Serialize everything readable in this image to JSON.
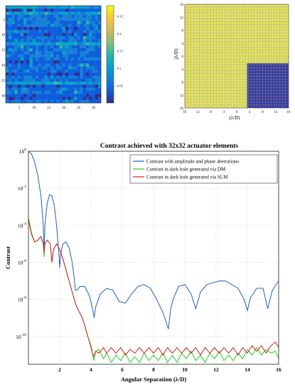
{
  "heatmap": {
    "y_ticks": [
      "5",
      "10",
      "15",
      "20",
      "25",
      "30"
    ],
    "x_ticks": [
      "5",
      "10",
      "15",
      "20",
      "25",
      "30"
    ],
    "colorbar_ticks": [
      "0.25",
      "0.2",
      "0.15",
      "0.1",
      "0.05"
    ],
    "colormap": [
      "#352a87",
      "#0f5cdd",
      "#1481d6",
      "#06a4ca",
      "#2eb7a4",
      "#87bf77",
      "#d1bb59",
      "#fec832",
      "#f9fb0e"
    ]
  },
  "dark_hole": {
    "y_label": "(λ/D)",
    "x_label": "(λ/D)",
    "y_ticks": [
      "16",
      "12",
      "8",
      "4",
      "0",
      "4",
      "8",
      "12",
      "16"
    ],
    "x_ticks": [
      "16",
      "12",
      "8",
      "4",
      "0",
      "4",
      "8",
      "12",
      "16"
    ],
    "field_color": "#e8e35a",
    "hole_color": "#3a3a9a",
    "grid_color": "#8aa0b0"
  },
  "chart_data": {
    "type": "line",
    "title": "Contrast achieved with 32x32 actuator elements",
    "xlabel": "Angular Separation (λ/D)",
    "ylabel": "Contrast",
    "xlim": [
      0,
      16
    ],
    "ylim_log10": [
      -11.5,
      0
    ],
    "x_ticks": [
      "2",
      "4",
      "6",
      "8",
      "10",
      "12",
      "14",
      "16"
    ],
    "y_ticks": [
      {
        "exp": 0,
        "base": "10",
        "sup": "0"
      },
      {
        "exp": -2,
        "base": "10",
        "sup": "-2"
      },
      {
        "exp": -4,
        "base": "10",
        "sup": "-4"
      },
      {
        "exp": -6,
        "base": "10",
        "sup": "-6"
      },
      {
        "exp": -8,
        "base": "10",
        "sup": "-8"
      },
      {
        "exp": -10,
        "base": "10",
        "sup": "-10"
      }
    ],
    "grid": true,
    "legend_position": "top-right",
    "series": [
      {
        "name": "Contrast with amplitude and phase aberrations",
        "color": "#1f5fc0",
        "x": [
          0,
          0.2,
          0.4,
          0.6,
          0.8,
          0.95,
          1.0,
          1.05,
          1.2,
          1.35,
          1.5,
          1.65,
          1.8,
          1.95,
          2.0,
          2.05,
          2.2,
          2.4,
          2.6,
          2.8,
          2.95,
          3.0,
          3.1,
          3.3,
          3.6,
          3.9,
          4.1,
          4.2,
          4.3,
          4.6,
          5.0,
          5.4,
          5.8,
          6.2,
          6.6,
          7.0,
          7.4,
          7.8,
          8.2,
          8.6,
          8.95,
          9.1,
          9.25,
          9.6,
          10.0,
          10.4,
          10.7,
          11.0,
          11.4,
          11.8,
          12.2,
          12.6,
          13.0,
          13.4,
          13.8,
          14.0,
          14.2,
          14.6,
          15.0,
          15.3,
          15.6,
          16.0
        ],
        "y_log10": [
          0,
          -0.15,
          -0.6,
          -1.3,
          -2.4,
          -4.0,
          -5.7,
          -4.0,
          -2.8,
          -2.35,
          -2.4,
          -2.9,
          -4.0,
          -5.6,
          -6.3,
          -5.6,
          -5.0,
          -4.9,
          -5.2,
          -6.0,
          -7.0,
          -7.5,
          -7.5,
          -7.3,
          -7.3,
          -7.8,
          -8.5,
          -9.0,
          -8.4,
          -7.7,
          -7.4,
          -7.5,
          -8.1,
          -8.2,
          -7.7,
          -7.3,
          -7.2,
          -7.4,
          -8.0,
          -8.7,
          -9.6,
          -8.5,
          -8.0,
          -7.3,
          -7.2,
          -7.7,
          -8.5,
          -7.6,
          -7.2,
          -7.1,
          -7.0,
          -7.0,
          -7.2,
          -7.4,
          -8.0,
          -8.6,
          -7.9,
          -7.4,
          -7.4,
          -8.5,
          -7.5,
          -7.0
        ]
      },
      {
        "name": "Contrast in dark hole generated via DM",
        "color": "#22cc22",
        "x": [
          0,
          0.2,
          0.4,
          0.6,
          0.8,
          0.95,
          1.0,
          1.05,
          1.2,
          1.4,
          1.5,
          1.6,
          1.8,
          2.0,
          2.2,
          2.4,
          2.6,
          2.8,
          3.0,
          3.2,
          3.4,
          3.6,
          3.8,
          4.0,
          4.2,
          4.3,
          4.5,
          4.8,
          5.0,
          5.3,
          5.6,
          5.9,
          6.2,
          6.5,
          6.8,
          7.1,
          7.4,
          7.7,
          8.0,
          8.3,
          8.6,
          8.9,
          9.2,
          9.5,
          9.8,
          10.1,
          10.4,
          10.7,
          11.0,
          11.3,
          11.6,
          11.9,
          12.2,
          12.5,
          12.8,
          13.1,
          13.4,
          13.7,
          14.0,
          14.3,
          14.6,
          14.9,
          15.2,
          15.5,
          15.8,
          16.0
        ],
        "y_log10": [
          -3.6,
          -4.4,
          -4.9,
          -4.8,
          -4.6,
          -5.0,
          -5.6,
          -5.0,
          -4.8,
          -5.0,
          -6.0,
          -5.3,
          -5.0,
          -5.3,
          -5.8,
          -6.4,
          -7.0,
          -7.6,
          -8.2,
          -8.6,
          -8.9,
          -9.4,
          -10.0,
          -10.6,
          -11.3,
          -10.8,
          -10.7,
          -11.2,
          -10.9,
          -11.4,
          -11.0,
          -11.3,
          -10.9,
          -11.4,
          -11.1,
          -11.4,
          -10.9,
          -11.3,
          -11.0,
          -11.3,
          -10.9,
          -11.4,
          -11.0,
          -11.4,
          -10.9,
          -11.2,
          -10.8,
          -11.3,
          -11.0,
          -11.4,
          -10.9,
          -11.2,
          -10.8,
          -11.3,
          -11.0,
          -11.3,
          -10.9,
          -11.2,
          -10.7,
          -11.0,
          -10.6,
          -11.0,
          -10.7,
          -10.9,
          -10.8,
          -11.2
        ]
      },
      {
        "name": "Contrast in dark hole generated via SLM",
        "color": "#d62020",
        "x": [
          0,
          0.2,
          0.4,
          0.6,
          0.8,
          0.95,
          1.0,
          1.05,
          1.2,
          1.4,
          1.5,
          1.6,
          1.8,
          2.0,
          2.2,
          2.4,
          2.6,
          2.8,
          3.0,
          3.2,
          3.4,
          3.6,
          3.8,
          4.0,
          4.15,
          4.3,
          4.5,
          4.8,
          5.0,
          5.3,
          5.6,
          5.9,
          6.2,
          6.5,
          6.8,
          7.1,
          7.4,
          7.7,
          8.0,
          8.3,
          8.6,
          8.9,
          9.2,
          9.5,
          9.8,
          10.1,
          10.4,
          10.7,
          11.0,
          11.3,
          11.6,
          11.9,
          12.2,
          12.5,
          12.8,
          13.1,
          13.4,
          13.7,
          14.0,
          14.3,
          14.6,
          14.9,
          15.2,
          15.5,
          15.8,
          16.0
        ],
        "y_log10": [
          -3.7,
          -4.5,
          -4.9,
          -4.8,
          -4.6,
          -5.0,
          -5.5,
          -5.0,
          -4.8,
          -5.0,
          -6.0,
          -5.3,
          -5.0,
          -5.3,
          -5.8,
          -6.4,
          -7.0,
          -7.6,
          -8.2,
          -8.6,
          -8.9,
          -9.4,
          -10.0,
          -10.5,
          -11.1,
          -10.8,
          -10.9,
          -10.6,
          -10.9,
          -10.6,
          -10.9,
          -10.6,
          -11.0,
          -10.7,
          -10.9,
          -10.6,
          -10.9,
          -10.6,
          -10.9,
          -10.6,
          -11.0,
          -10.6,
          -10.9,
          -10.6,
          -10.9,
          -10.6,
          -10.9,
          -10.6,
          -11.0,
          -10.6,
          -10.9,
          -10.6,
          -10.9,
          -10.6,
          -10.9,
          -10.6,
          -11.0,
          -10.6,
          -10.9,
          -10.5,
          -10.8,
          -10.5,
          -10.9,
          -10.5,
          -10.3,
          -10.6
        ]
      }
    ]
  }
}
